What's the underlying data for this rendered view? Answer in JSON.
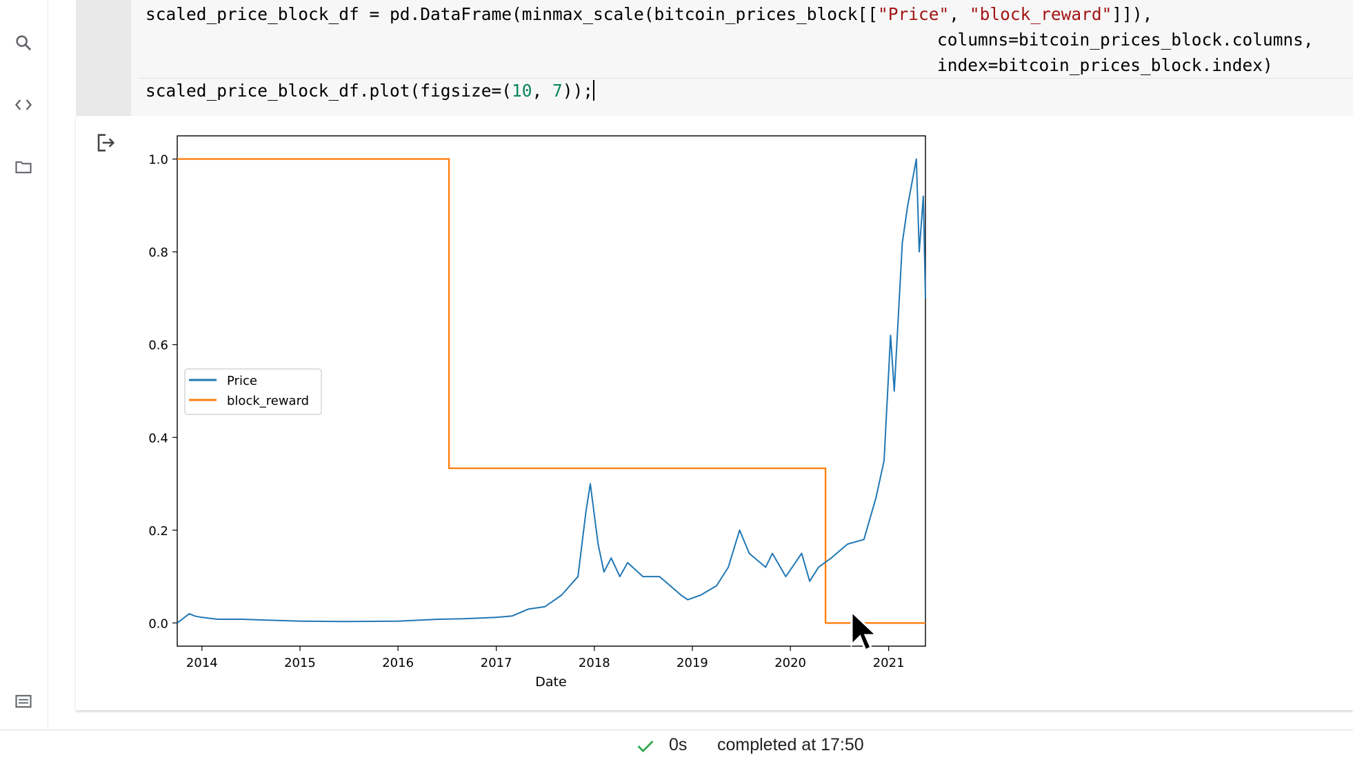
{
  "sidebar": {
    "icons": [
      "search-icon",
      "code-snippets-icon",
      "folder-icon",
      "terminal-icon"
    ]
  },
  "code": {
    "line1_a": "scaled_price_block_df = pd.DataFrame(minmax_scale(bitcoin_prices_block[[",
    "line1_str1": "\"Price\"",
    "line1_sep": ", ",
    "line1_str2": "\"block_reward\"",
    "line1_b": "]]),",
    "line2": "columns=bitcoin_prices_block.columns,",
    "line3": "index=bitcoin_prices_block.index)",
    "line4_a": "scaled_price_block_df.plot(figsize=(",
    "line4_n1": "10",
    "line4_sep": ", ",
    "line4_n2": "7",
    "line4_b": "));"
  },
  "colors": {
    "price": "#1f77b4",
    "block_reward": "#ff7f0e",
    "string": "#a31515",
    "number": "#098658",
    "check": "#34a853"
  },
  "chart_data": {
    "type": "line",
    "title": "",
    "xlabel": "Date",
    "ylabel": "",
    "xlim": [
      "2013-10-01",
      "2021-05-18"
    ],
    "ylim": [
      -0.05,
      1.05
    ],
    "x_ticks": [
      "2014",
      "2015",
      "2016",
      "2017",
      "2018",
      "2019",
      "2020",
      "2021"
    ],
    "y_ticks": [
      "0.0",
      "0.2",
      "0.4",
      "0.6",
      "0.8",
      "1.0"
    ],
    "grid": false,
    "legend": "center-left",
    "series": [
      {
        "name": "Price",
        "color": "#1f77b4",
        "x": [
          "2013-10-01",
          "2013-11-15",
          "2013-12-05",
          "2014-01-01",
          "2014-03-01",
          "2014-06-01",
          "2014-09-01",
          "2015-01-01",
          "2015-06-01",
          "2016-01-01",
          "2016-06-01",
          "2016-09-01",
          "2017-01-01",
          "2017-03-01",
          "2017-05-01",
          "2017-07-01",
          "2017-09-01",
          "2017-11-01",
          "2017-12-01",
          "2017-12-17",
          "2018-01-15",
          "2018-02-06",
          "2018-03-05",
          "2018-04-06",
          "2018-05-05",
          "2018-07-01",
          "2018-09-01",
          "2018-11-20",
          "2018-12-15",
          "2019-02-01",
          "2019-04-01",
          "2019-05-15",
          "2019-06-26",
          "2019-08-01",
          "2019-10-01",
          "2019-10-26",
          "2019-12-15",
          "2020-02-12",
          "2020-03-13",
          "2020-04-15",
          "2020-06-01",
          "2020-08-01",
          "2020-10-01",
          "2020-11-15",
          "2020-12-15",
          "2021-01-08",
          "2021-01-22",
          "2021-02-21",
          "2021-03-13",
          "2021-04-14",
          "2021-04-25",
          "2021-05-10",
          "2021-05-18"
        ],
        "values": [
          0.0,
          0.02,
          0.015,
          0.012,
          0.008,
          0.008,
          0.006,
          0.004,
          0.003,
          0.004,
          0.008,
          0.009,
          0.012,
          0.015,
          0.03,
          0.035,
          0.06,
          0.1,
          0.24,
          0.3,
          0.17,
          0.11,
          0.14,
          0.1,
          0.13,
          0.1,
          0.1,
          0.06,
          0.05,
          0.06,
          0.08,
          0.12,
          0.2,
          0.15,
          0.12,
          0.15,
          0.1,
          0.15,
          0.09,
          0.12,
          0.14,
          0.17,
          0.18,
          0.27,
          0.35,
          0.62,
          0.5,
          0.82,
          0.9,
          1.0,
          0.8,
          0.92,
          0.7
        ]
      },
      {
        "name": "block_reward",
        "color": "#ff7f0e",
        "x": [
          "2013-10-01",
          "2016-07-09",
          "2016-07-09",
          "2020-05-11",
          "2020-05-11",
          "2021-05-18"
        ],
        "values": [
          1.0,
          1.0,
          0.3333,
          0.3333,
          0.0,
          0.0
        ]
      }
    ]
  },
  "status": {
    "time": "0s",
    "message": "completed at 17:50"
  }
}
